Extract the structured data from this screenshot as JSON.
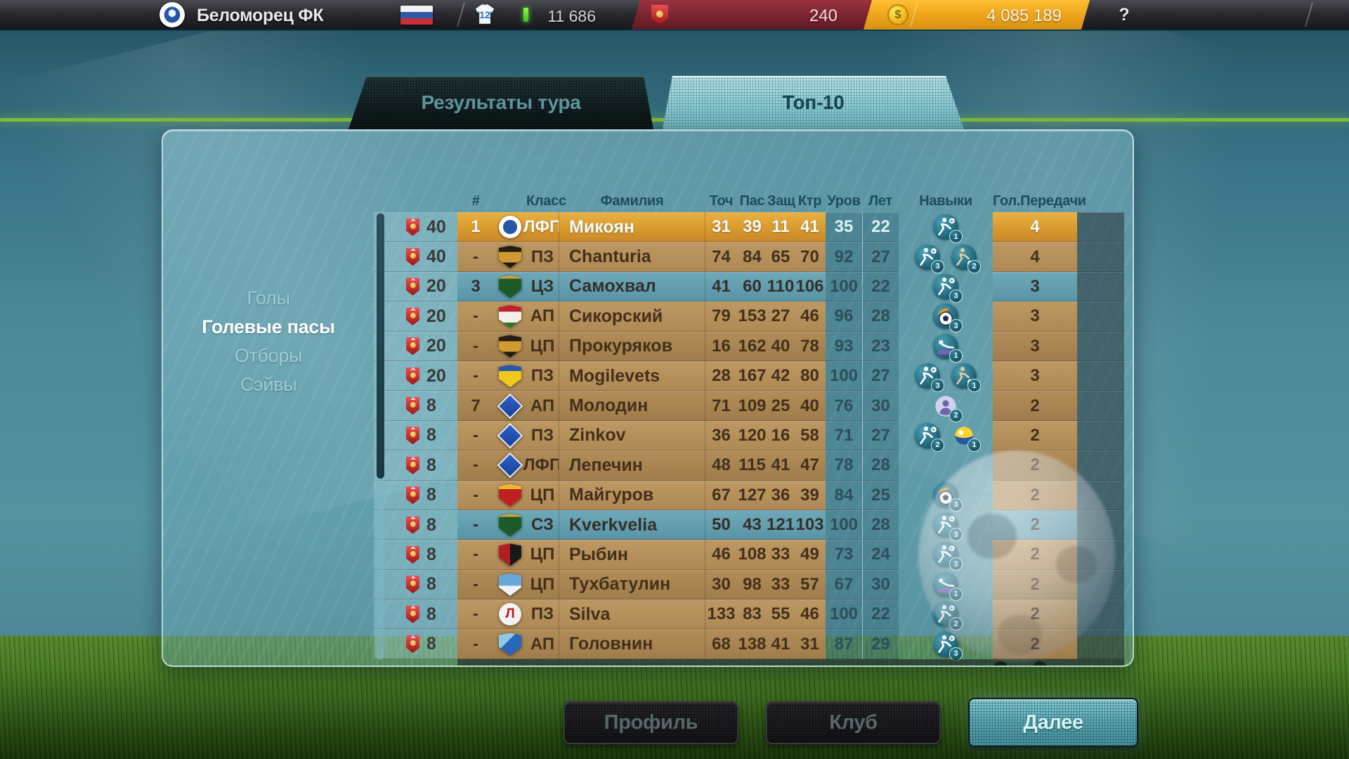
{
  "top_bar": {
    "club_badge_icon": "club-crest-icon",
    "club_name": "Беломорец ФК",
    "flag_icon": "russia-flag-icon",
    "jersey_icon": "jersey-icon",
    "jersey_count": "12",
    "fans_indicator_icon": "green-gain-icon",
    "fans": "11 686",
    "pennant_icon": "red-pennant-icon",
    "pennants": "240",
    "coin_icon": "dollar-coin-icon",
    "money": "4 085 189",
    "help_label": "?",
    "colors": {
      "red_segment": "#7c2532",
      "gold_segment": "#f0a81c"
    }
  },
  "tabs": [
    {
      "label": "Результаты тура",
      "active": false
    },
    {
      "label": "Топ-10",
      "active": true
    }
  ],
  "sidebar": {
    "items": [
      {
        "label": "Голы",
        "selected": false
      },
      {
        "label": "Голевые пасы",
        "selected": true
      },
      {
        "label": "Отборы",
        "selected": false
      },
      {
        "label": "Сэйвы",
        "selected": false
      }
    ]
  },
  "table": {
    "columns": [
      {
        "key": "reward",
        "label": ""
      },
      {
        "key": "rank",
        "label": "#"
      },
      {
        "key": "logo",
        "label": ""
      },
      {
        "key": "cls",
        "label": "Класс"
      },
      {
        "key": "name",
        "label": "Фамилия"
      },
      {
        "key": "shot",
        "label": "Точ"
      },
      {
        "key": "pass",
        "label": "Пас"
      },
      {
        "key": "def",
        "label": "Защ"
      },
      {
        "key": "ctr",
        "label": "Ктр"
      },
      {
        "key": "level",
        "label": "Уров"
      },
      {
        "key": "age",
        "label": "Лет"
      },
      {
        "key": "skills",
        "label": "Навыки"
      },
      {
        "key": "assists",
        "label": "Гол.Передачи"
      },
      {
        "key": "gutter",
        "label": ""
      }
    ],
    "clubs": {
      "belomorets": {
        "shape": "circle",
        "bg": "radial-gradient(circle,#2457a8 0 44%,#ffffff 45% 72%,#cf3333 73% 100%)"
      },
      "ural": {
        "shape": "shield",
        "bg": "linear-gradient(180deg,#241c10 0 26%,#cf9a33 26% 74%,#241c10 74%)"
      },
      "krasnodar": {
        "shape": "shield",
        "bg": "linear-gradient(180deg,#cfa43c 0 14%,#1c5a28 14%)"
      },
      "rubin": {
        "shape": "shield",
        "bg": "linear-gradient(180deg,#c02030 0 30%,#f2efe9 30% 78%,#2a7a2a 78%)"
      },
      "rostov": {
        "shape": "shield",
        "bg": "linear-gradient(180deg,#2858a8 0 28%,#f0c81e 28%)"
      },
      "krylia": {
        "shape": "diamond",
        "bg": "linear-gradient(135deg,#2c62cc,#1a3f96)"
      },
      "elets": {
        "shape": "shield",
        "bg": "linear-gradient(180deg,#e8b830 0 22%,#c02020 22%)"
      },
      "amkar": {
        "shape": "shield",
        "bg": "linear-gradient(90deg,#b02020 0 50%,#181818 50%)"
      },
      "avangard": {
        "shape": "shield",
        "bg": "linear-gradient(180deg,#68a8d8 0 55%,#f0f4f8 55%)"
      },
      "loko": {
        "shape": "circle",
        "bg": "radial-gradient(circle,#f2f2f2 0 74%,#2a7a3a 75%)",
        "letter": "Л",
        "letter_color": "#c01818"
      },
      "dynamo": {
        "shape": "shield",
        "bg": "linear-gradient(135deg,#90c8e8 0 38%,#2868b8 38%)"
      }
    },
    "rows": [
      {
        "reward": "40",
        "rank": "1",
        "club": "belomorets",
        "cls": "ЛФП",
        "name": "Микоян",
        "shot": "31",
        "pass": "39",
        "def": "11",
        "ctr": "41",
        "level": "35",
        "age": "22",
        "skills": [
          {
            "type": "kick",
            "level": "1"
          }
        ],
        "assists": "4",
        "variant": "gold"
      },
      {
        "reward": "40",
        "rank": "-",
        "club": "ural",
        "cls": "ПЗ",
        "name": "Chanturia",
        "shot": "74",
        "pass": "84",
        "def": "65",
        "ctr": "70",
        "level": "92",
        "age": "27",
        "skills": [
          {
            "type": "kick",
            "level": "3"
          },
          {
            "type": "dribble",
            "level": "2"
          }
        ],
        "assists": "4",
        "variant": "light"
      },
      {
        "reward": "20",
        "rank": "3",
        "club": "krasnodar",
        "cls": "ЦЗ",
        "name": "Самохвал",
        "shot": "41",
        "pass": "60",
        "def": "110",
        "ctr": "106",
        "level": "100",
        "age": "22",
        "skills": [
          {
            "type": "kick",
            "level": "3"
          }
        ],
        "assists": "3",
        "variant": "teal"
      },
      {
        "reward": "20",
        "rank": "-",
        "club": "rubin",
        "cls": "АП",
        "name": "Сикорский",
        "shot": "79",
        "pass": "153",
        "def": "27",
        "ctr": "46",
        "level": "96",
        "age": "28",
        "skills": [
          {
            "type": "flame",
            "level": "3"
          }
        ],
        "assists": "3",
        "variant": "light"
      },
      {
        "reward": "20",
        "rank": "-",
        "club": "ural",
        "cls": "ЦП",
        "name": "Прокуряков",
        "shot": "16",
        "pass": "162",
        "def": "40",
        "ctr": "78",
        "level": "93",
        "age": "23",
        "skills": [
          {
            "type": "tackle",
            "level": "1"
          }
        ],
        "assists": "3",
        "variant": "dark"
      },
      {
        "reward": "20",
        "rank": "-",
        "club": "rostov",
        "cls": "ПЗ",
        "name": "Mogilevets",
        "shot": "28",
        "pass": "167",
        "def": "42",
        "ctr": "80",
        "level": "100",
        "age": "27",
        "skills": [
          {
            "type": "kick",
            "level": "3"
          },
          {
            "type": "dribble",
            "level": "1"
          }
        ],
        "assists": "3",
        "variant": "light"
      },
      {
        "reward": "8",
        "rank": "7",
        "club": "krylia",
        "cls": "АП",
        "name": "Молодин",
        "shot": "71",
        "pass": "109",
        "def": "25",
        "ctr": "40",
        "level": "76",
        "age": "30",
        "skills": [
          {
            "type": "person",
            "level": "2"
          }
        ],
        "assists": "2",
        "variant": "dark"
      },
      {
        "reward": "8",
        "rank": "-",
        "club": "krylia",
        "cls": "ПЗ",
        "name": "Zinkov",
        "shot": "36",
        "pass": "120",
        "def": "16",
        "ctr": "58",
        "level": "71",
        "age": "27",
        "skills": [
          {
            "type": "kick",
            "level": "2"
          },
          {
            "type": "ball",
            "level": "1"
          }
        ],
        "assists": "2",
        "variant": "light"
      },
      {
        "reward": "8",
        "rank": "-",
        "club": "krylia",
        "cls": "ЛФП",
        "name": "Лепечин",
        "shot": "48",
        "pass": "115",
        "def": "41",
        "ctr": "47",
        "level": "78",
        "age": "28",
        "skills": [],
        "assists": "2",
        "variant": "dark"
      },
      {
        "reward": "8",
        "rank": "-",
        "club": "elets",
        "cls": "ЦП",
        "name": "Майгуров",
        "shot": "67",
        "pass": "127",
        "def": "36",
        "ctr": "39",
        "level": "84",
        "age": "25",
        "skills": [
          {
            "type": "flame",
            "level": "3"
          }
        ],
        "assists": "2",
        "variant": "light"
      },
      {
        "reward": "8",
        "rank": "-",
        "club": "krasnodar",
        "cls": "СЗ",
        "name": "Kverkvelia",
        "shot": "50",
        "pass": "43",
        "def": "121",
        "ctr": "103",
        "level": "100",
        "age": "28",
        "skills": [
          {
            "type": "kick",
            "level": "3"
          }
        ],
        "assists": "2",
        "variant": "teal"
      },
      {
        "reward": "8",
        "rank": "-",
        "club": "amkar",
        "cls": "ЦП",
        "name": "Рыбин",
        "shot": "46",
        "pass": "108",
        "def": "33",
        "ctr": "49",
        "level": "73",
        "age": "24",
        "skills": [
          {
            "type": "kick",
            "level": "3"
          }
        ],
        "assists": "2",
        "variant": "light"
      },
      {
        "reward": "8",
        "rank": "-",
        "club": "avangard",
        "cls": "ЦП",
        "name": "Тухбатулин",
        "shot": "30",
        "pass": "98",
        "def": "33",
        "ctr": "57",
        "level": "67",
        "age": "30",
        "skills": [
          {
            "type": "tackle",
            "level": "1"
          }
        ],
        "assists": "2",
        "variant": "dark"
      },
      {
        "reward": "8",
        "rank": "-",
        "club": "loko",
        "cls": "ПЗ",
        "name": "Silva",
        "shot": "133",
        "pass": "83",
        "def": "55",
        "ctr": "46",
        "level": "100",
        "age": "22",
        "skills": [
          {
            "type": "kick",
            "level": "2"
          }
        ],
        "assists": "2",
        "variant": "light"
      },
      {
        "reward": "8",
        "rank": "-",
        "club": "dynamo",
        "cls": "АП",
        "name": "Головнин",
        "shot": "68",
        "pass": "138",
        "def": "41",
        "ctr": "31",
        "level": "87",
        "age": "29",
        "skills": [
          {
            "type": "kick",
            "level": "3"
          }
        ],
        "assists": "2",
        "variant": "dark"
      }
    ]
  },
  "buttons": [
    {
      "label": "Профиль",
      "enabled": false
    },
    {
      "label": "Клуб",
      "enabled": false
    },
    {
      "label": "Далее",
      "enabled": true
    }
  ]
}
